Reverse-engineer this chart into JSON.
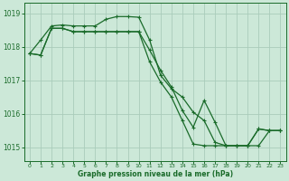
{
  "background_color": "#cce8d8",
  "grid_color": "#aaccbb",
  "line_color": "#1a6b2a",
  "xlabel": "Graphe pression niveau de la mer (hPa)",
  "xlim": [
    -0.5,
    23.5
  ],
  "ylim": [
    1014.6,
    1019.3
  ],
  "yticks": [
    1015,
    1016,
    1017,
    1018,
    1019
  ],
  "xticks": [
    0,
    1,
    2,
    3,
    4,
    5,
    6,
    7,
    8,
    9,
    10,
    11,
    12,
    13,
    14,
    15,
    16,
    17,
    18,
    19,
    20,
    21,
    22,
    23
  ],
  "series1_x": [
    0,
    1,
    2,
    3,
    4,
    5,
    6,
    7,
    8,
    9,
    10,
    11,
    12,
    13,
    14,
    15,
    16,
    17,
    18,
    19,
    20,
    21,
    22,
    23
  ],
  "series1_y": [
    1017.8,
    1018.2,
    1018.62,
    1018.65,
    1018.62,
    1018.62,
    1018.62,
    1018.82,
    1018.9,
    1018.9,
    1018.88,
    1018.2,
    1017.15,
    1016.75,
    1016.5,
    1016.05,
    1015.8,
    1015.15,
    1015.05,
    1015.05,
    1015.05,
    1015.55,
    1015.5,
    1015.5
  ],
  "series2_x": [
    0,
    1,
    2,
    3,
    4,
    5,
    6,
    7,
    8,
    9,
    10,
    11,
    12,
    13,
    14,
    15,
    16,
    17,
    18,
    19,
    20,
    21,
    22,
    23
  ],
  "series2_y": [
    1017.8,
    1017.75,
    1018.55,
    1018.55,
    1018.45,
    1018.45,
    1018.45,
    1018.45,
    1018.45,
    1018.45,
    1018.45,
    1017.9,
    1017.3,
    1016.8,
    1016.1,
    1015.6,
    1016.4,
    1015.75,
    1015.05,
    1015.05,
    1015.05,
    1015.55,
    1015.5,
    1015.5
  ],
  "series3_x": [
    0,
    1,
    2,
    3,
    4,
    5,
    6,
    7,
    8,
    9,
    10,
    11,
    12,
    13,
    14,
    15,
    16,
    17,
    18,
    19,
    20,
    21,
    22,
    23
  ],
  "series3_y": [
    1017.8,
    1017.75,
    1018.55,
    1018.55,
    1018.45,
    1018.45,
    1018.45,
    1018.45,
    1018.45,
    1018.45,
    1018.45,
    1017.55,
    1016.95,
    1016.5,
    1015.8,
    1015.1,
    1015.05,
    1015.05,
    1015.05,
    1015.05,
    1015.05,
    1015.05,
    1015.5,
    1015.5
  ]
}
